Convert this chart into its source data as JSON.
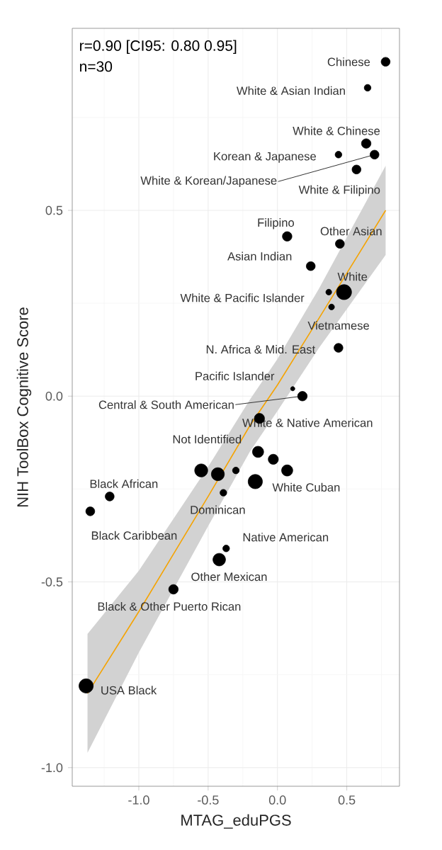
{
  "chart_data": {
    "type": "bubble",
    "xlabel": "MTAG_eduPGS",
    "ylabel": "NIH ToolBox Cognitive Score",
    "xlim": [
      -1.48,
      0.88
    ],
    "ylim": [
      -1.05,
      0.99
    ],
    "xticks": [
      {
        "value": -1.0,
        "label": "-1.0"
      },
      {
        "value": -0.5,
        "label": "-0.5"
      },
      {
        "value": 0.0,
        "label": "0.0"
      },
      {
        "value": 0.5,
        "label": "0.5"
      }
    ],
    "yticks": [
      {
        "value": -1.0,
        "label": "-1.0"
      },
      {
        "value": -0.5,
        "label": "-0.5"
      },
      {
        "value": 0.0,
        "label": "0.0"
      },
      {
        "value": 0.5,
        "label": "0.5"
      }
    ],
    "grid": true,
    "series": [
      {
        "type": "line",
        "color": "#f5a300",
        "x": [
          -1.37,
          -1.0,
          -0.5,
          -0.2,
          0.0,
          0.3,
          0.78
        ],
        "values": [
          -0.8,
          -0.58,
          -0.27,
          -0.08,
          0.03,
          0.21,
          0.5
        ],
        "lower": [
          -0.96,
          -0.69,
          -0.35,
          -0.15,
          -0.04,
          0.13,
          0.38
        ],
        "upper": [
          -0.64,
          -0.47,
          -0.19,
          -0.01,
          0.1,
          0.29,
          0.62
        ]
      },
      {
        "color": "#000000",
        "x": [
          0.78,
          0.65,
          0.64,
          0.44,
          0.7,
          0.57,
          0.07,
          0.45,
          0.24,
          0.48,
          0.37,
          0.39,
          0.44,
          0.11,
          0.18,
          -0.13,
          -0.14,
          -0.16,
          -0.39,
          -1.21,
          -1.35,
          -0.37,
          -0.42,
          -0.75,
          -1.38,
          -0.03,
          0.07,
          -0.55,
          -0.43,
          -0.3
        ],
        "values": [
          0.9,
          0.83,
          0.68,
          0.65,
          0.65,
          0.61,
          0.43,
          0.41,
          0.35,
          0.28,
          0.28,
          0.24,
          0.13,
          0.02,
          0.0,
          -0.06,
          -0.15,
          -0.23,
          -0.26,
          -0.27,
          -0.31,
          -0.41,
          -0.44,
          -0.52,
          -0.78,
          -0.17,
          -0.2,
          -0.2,
          -0.21,
          -0.2
        ],
        "sizes": [
          0.35,
          0.2,
          0.4,
          0.2,
          0.35,
          0.35,
          0.4,
          0.35,
          0.35,
          1,
          0.15,
          0.15,
          0.35,
          0.08,
          0.4,
          0.45,
          0.55,
          0.9,
          0.2,
          0.35,
          0.35,
          0.2,
          0.7,
          0.4,
          0.9,
          0.45,
          0.55,
          0.75,
          0.75,
          0.2
        ]
      }
    ],
    "annotations": [
      "r=0.90 [CI95: 0.80 0.95]",
      "n=30",
      {
        "text": "Chinese",
        "x": 0.78,
        "y": 0.9
      },
      {
        "text": "White & Asian Indian",
        "x": 0.65,
        "y": 0.83
      },
      {
        "text": "White & Chinese",
        "x": 0.64,
        "y": 0.68
      },
      {
        "text": "Korean & Japanese",
        "x": 0.44,
        "y": 0.65
      },
      {
        "text": "White & Korean/Japanese",
        "x": 0.7,
        "y": 0.65
      },
      {
        "text": "White & Filipino",
        "x": 0.57,
        "y": 0.61
      },
      {
        "text": "Filipino",
        "x": 0.07,
        "y": 0.43
      },
      {
        "text": "Other Asian",
        "x": 0.45,
        "y": 0.41
      },
      {
        "text": "Asian Indian",
        "x": 0.24,
        "y": 0.35
      },
      {
        "text": "White",
        "x": 0.48,
        "y": 0.28
      },
      {
        "text": "White & Pacific Islander",
        "x": 0.37,
        "y": 0.28
      },
      {
        "text": "Vietnamese",
        "x": 0.39,
        "y": 0.24
      },
      {
        "text": "N. Africa & Mid. East",
        "x": 0.44,
        "y": 0.13
      },
      {
        "text": "Pacific Islander",
        "x": 0.11,
        "y": 0.02
      },
      {
        "text": "Central & South American",
        "x": 0.18,
        "y": 0.0
      },
      {
        "text": "White & Native American",
        "x": -0.13,
        "y": -0.06
      },
      {
        "text": "Not Identified",
        "x": -0.14,
        "y": -0.15
      },
      {
        "text": "White Cuban",
        "x": -0.16,
        "y": -0.23
      },
      {
        "text": "Dominican",
        "x": -0.39,
        "y": -0.26
      },
      {
        "text": "Black African",
        "x": -1.21,
        "y": -0.27
      },
      {
        "text": "Black Caribbean",
        "x": -1.35,
        "y": -0.31
      },
      {
        "text": "Native American",
        "x": -0.37,
        "y": -0.41
      },
      {
        "text": "Other Mexican",
        "x": -0.42,
        "y": -0.44
      },
      {
        "text": "Black & Other Puerto Rican",
        "x": -0.75,
        "y": -0.52
      },
      {
        "text": "USA Black",
        "x": -1.38,
        "y": -0.78
      }
    ]
  }
}
